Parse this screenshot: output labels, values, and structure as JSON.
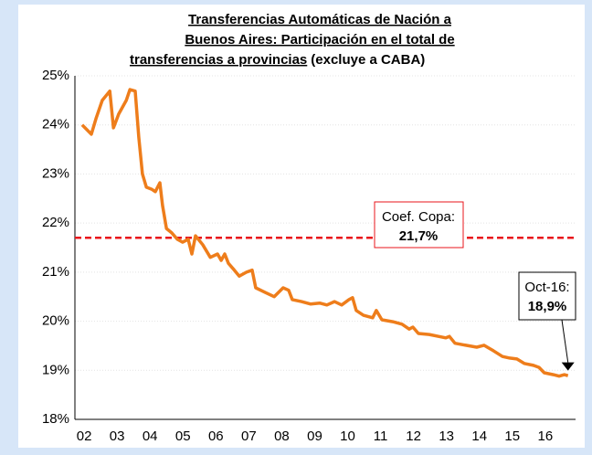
{
  "chart_data": {
    "type": "line",
    "title_lines": [
      "Transferencias Automáticas de Nación a",
      "Buenos Aires: Participación en el total de",
      "transferencias a provincias"
    ],
    "title_note": "(excluye a CABA)",
    "x": [
      1.94,
      2.22,
      2.36,
      2.55,
      2.78,
      2.89,
      3.05,
      3.28,
      3.39,
      3.55,
      3.66,
      3.77,
      3.89,
      4.05,
      4.16,
      4.3,
      4.38,
      4.5,
      4.66,
      4.83,
      4.99,
      5.16,
      5.27,
      5.38,
      5.6,
      5.83,
      6.05,
      6.16,
      6.27,
      6.38,
      6.55,
      6.71,
      6.93,
      7.1,
      7.21,
      7.49,
      7.77,
      8.04,
      8.21,
      8.32,
      8.6,
      8.88,
      9.15,
      9.37,
      9.6,
      9.82,
      10.04,
      10.15,
      10.26,
      10.48,
      10.76,
      10.87,
      11.04,
      11.37,
      11.65,
      11.87,
      11.98,
      12.15,
      12.48,
      12.76,
      12.98,
      13.09,
      13.26,
      13.59,
      13.92,
      14.14,
      14.42,
      14.7,
      14.92,
      15.14,
      15.36,
      15.64,
      15.81,
      15.97,
      16.25,
      16.42,
      16.58,
      16.69
    ],
    "series": [
      {
        "name": "Participación",
        "color": "#ee7d1b",
        "values": [
          24.0,
          23.81,
          24.13,
          24.5,
          24.69,
          23.94,
          24.22,
          24.5,
          24.72,
          24.69,
          23.75,
          23.0,
          22.73,
          22.69,
          22.64,
          22.82,
          22.36,
          21.89,
          21.8,
          21.67,
          21.61,
          21.67,
          21.37,
          21.74,
          21.56,
          21.3,
          21.37,
          21.24,
          21.37,
          21.18,
          21.05,
          20.92,
          21.0,
          21.04,
          20.68,
          20.59,
          20.5,
          20.68,
          20.63,
          20.44,
          20.4,
          20.35,
          20.37,
          20.33,
          20.4,
          20.33,
          20.44,
          20.48,
          20.22,
          20.12,
          20.07,
          20.22,
          20.03,
          19.99,
          19.94,
          19.84,
          19.88,
          19.75,
          19.73,
          19.69,
          19.66,
          19.69,
          19.55,
          19.51,
          19.47,
          19.51,
          19.4,
          19.28,
          19.25,
          19.23,
          19.14,
          19.1,
          19.06,
          18.95,
          18.91,
          18.88,
          18.91,
          18.89
        ]
      }
    ],
    "xlim": [
      1.72,
      16.92
    ],
    "xticks": [
      {
        "value": 2,
        "label": "02"
      },
      {
        "value": 3,
        "label": "03"
      },
      {
        "value": 4,
        "label": "04"
      },
      {
        "value": 5,
        "label": "05"
      },
      {
        "value": 6,
        "label": "06"
      },
      {
        "value": 7,
        "label": "07"
      },
      {
        "value": 8,
        "label": "08"
      },
      {
        "value": 9,
        "label": "09"
      },
      {
        "value": 10,
        "label": "10"
      },
      {
        "value": 11,
        "label": "11"
      },
      {
        "value": 12,
        "label": "12"
      },
      {
        "value": 13,
        "label": "13"
      },
      {
        "value": 14,
        "label": "14"
      },
      {
        "value": 15,
        "label": "15"
      },
      {
        "value": 16,
        "label": "16"
      }
    ],
    "ylim": [
      18,
      25
    ],
    "yticks": [
      {
        "value": 18,
        "label": "18%"
      },
      {
        "value": 19,
        "label": "19%"
      },
      {
        "value": 20,
        "label": "20%"
      },
      {
        "value": 21,
        "label": "21%"
      },
      {
        "value": 22,
        "label": "22%"
      },
      {
        "value": 23,
        "label": "23%"
      },
      {
        "value": 24,
        "label": "24%"
      },
      {
        "value": 25,
        "label": "25%"
      }
    ],
    "grid": true,
    "reference_line": {
      "text": "Coef. Copa:",
      "value": 21.7,
      "value_label": "21,7%",
      "color": "#e8141b"
    },
    "annotation": {
      "text": "Oct-16:",
      "x": 16.69,
      "value": 18.9,
      "value_label": "18,9%"
    }
  }
}
